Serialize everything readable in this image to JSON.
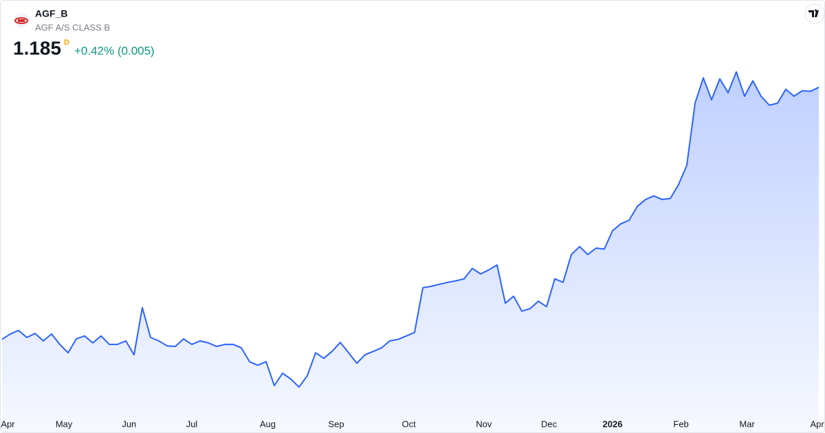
{
  "chart_data": {
    "type": "area",
    "symbol": "AGF_B",
    "description": "AGF A/S CLASS B",
    "last_price": 1.185,
    "interval": "D",
    "change": "+0.42% (0.005)",
    "color": "#2962ff",
    "change_color": "#089981",
    "interval_color": "#f7a600",
    "values": [
      0.677,
      0.688,
      0.695,
      0.681,
      0.689,
      0.674,
      0.688,
      0.667,
      0.65,
      0.678,
      0.684,
      0.67,
      0.684,
      0.667,
      0.667,
      0.674,
      0.646,
      0.741,
      0.681,
      0.674,
      0.664,
      0.663,
      0.678,
      0.667,
      0.674,
      0.67,
      0.663,
      0.667,
      0.667,
      0.66,
      0.632,
      0.625,
      0.632,
      0.584,
      0.609,
      0.597,
      0.581,
      0.604,
      0.65,
      0.639,
      0.653,
      0.671,
      0.65,
      0.629,
      0.646,
      0.653,
      0.66,
      0.674,
      0.677,
      0.684,
      0.691,
      0.781,
      0.784,
      0.788,
      0.792,
      0.795,
      0.799,
      0.82,
      0.809,
      0.817,
      0.827,
      0.75,
      0.764,
      0.734,
      0.739,
      0.754,
      0.743,
      0.799,
      0.792,
      0.848,
      0.864,
      0.848,
      0.861,
      0.859,
      0.896,
      0.91,
      0.917,
      0.945,
      0.959,
      0.966,
      0.959,
      0.961,
      0.989,
      1.028,
      1.153,
      1.204,
      1.16,
      1.202,
      1.174,
      1.216,
      1.167,
      1.198,
      1.167,
      1.149,
      1.153,
      1.181,
      1.167,
      1.178,
      1.177,
      1.185
    ],
    "xlim": [
      0,
      99
    ],
    "xticks": [
      {
        "value": 0.7,
        "label": "Apr"
      },
      {
        "value": 7.5,
        "label": "May"
      },
      {
        "value": 15.4,
        "label": "Jun"
      },
      {
        "value": 23,
        "label": "Jul"
      },
      {
        "value": 32.2,
        "label": "Aug"
      },
      {
        "value": 40.5,
        "label": "Sep"
      },
      {
        "value": 49.3,
        "label": "Oct"
      },
      {
        "value": 58.4,
        "label": "Nov"
      },
      {
        "value": 66.3,
        "label": "Dec"
      },
      {
        "value": 74,
        "label": "2026",
        "bold": true
      },
      {
        "value": 82.3,
        "label": "Feb"
      },
      {
        "value": 90.3,
        "label": "Mar"
      },
      {
        "value": 98.8,
        "label": "Apr"
      }
    ],
    "ylim": [
      0.53,
      1.23
    ]
  }
}
